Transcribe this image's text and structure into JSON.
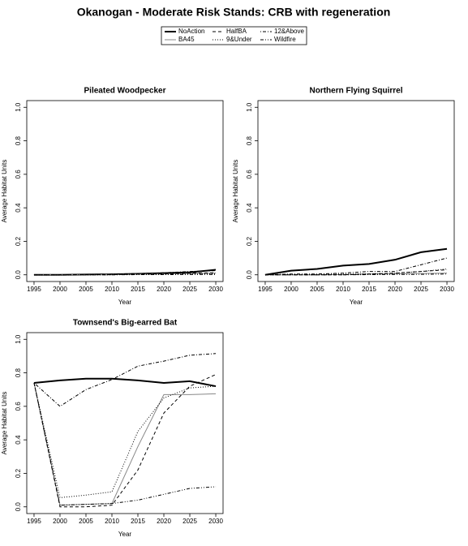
{
  "title": "Okanogan  - Moderate Risk Stands: CRB with regeneration",
  "chart_data": [
    {
      "type": "line",
      "title": "Pileated Woodpecker",
      "xlabel": "Year",
      "ylabel": "Average Habitat Units",
      "x": [
        1995,
        2000,
        2005,
        2010,
        2015,
        2020,
        2025,
        2030
      ],
      "xlim": [
        1993.6,
        2031.4
      ],
      "xticks": [
        1995,
        2000,
        2005,
        2010,
        2015,
        2020,
        2025,
        2030
      ],
      "ylim": [
        -0.04,
        1.04
      ],
      "yticks": [
        {
          "value": 0,
          "label": "0.0"
        },
        0.2,
        0.4,
        0.6,
        0.8,
        {
          "value": 1,
          "label": "1.0"
        }
      ],
      "series": [
        {
          "name": "NoAction",
          "color": "#000000",
          "style": "solid",
          "width": 2,
          "values": [
            0,
            0,
            0.002,
            0.003,
            0.006,
            0.01,
            0.015,
            0.03
          ]
        },
        {
          "name": "BA45",
          "color": "#888888",
          "style": "solid",
          "width": 1,
          "values": [
            0,
            0,
            0.001,
            0.002,
            0.003,
            0.005,
            0.008,
            0.01
          ]
        },
        {
          "name": "HalfBA",
          "color": "#000000",
          "style": "dashed",
          "width": 1,
          "values": [
            0,
            0,
            0.001,
            0.002,
            0.004,
            0.006,
            0.01,
            0.012
          ]
        },
        {
          "name": "9&Under",
          "color": "#000000",
          "style": "dotted",
          "width": 1,
          "values": [
            0,
            0,
            0,
            0.001,
            0.002,
            0.003,
            0.005,
            0.006
          ]
        },
        {
          "name": "12&Above",
          "color": "#000000",
          "style": "dotdash",
          "width": 1,
          "values": [
            0,
            0.001,
            0.002,
            0.004,
            0.008,
            0.012,
            0.02,
            0.025
          ]
        },
        {
          "name": "Wildfire",
          "color": "#000000",
          "style": "twodash",
          "width": 1,
          "values": [
            0,
            0,
            0,
            0,
            0.001,
            0.001,
            0.002,
            0.002
          ]
        }
      ]
    },
    {
      "type": "line",
      "title": "Northern Flying Squirrel",
      "xlabel": "Year",
      "ylabel": "Average Habitat Units",
      "x": [
        1995,
        2000,
        2005,
        2010,
        2015,
        2020,
        2025,
        2030
      ],
      "xlim": [
        1993.6,
        2031.4
      ],
      "xticks": [
        1995,
        2000,
        2005,
        2010,
        2015,
        2020,
        2025,
        2030
      ],
      "ylim": [
        -0.04,
        1.04
      ],
      "yticks": [
        {
          "value": 0,
          "label": "0.0"
        },
        0.2,
        0.4,
        0.6,
        0.8,
        {
          "value": 1,
          "label": "1.0"
        }
      ],
      "series": [
        {
          "name": "NoAction",
          "color": "#000000",
          "style": "solid",
          "width": 2,
          "values": [
            0,
            0.025,
            0.035,
            0.055,
            0.065,
            0.09,
            0.135,
            0.155
          ]
        },
        {
          "name": "BA45",
          "color": "#888888",
          "style": "solid",
          "width": 1,
          "values": [
            0,
            0,
            0,
            0.002,
            0.004,
            0.006,
            0.008,
            0.01
          ]
        },
        {
          "name": "HalfBA",
          "color": "#000000",
          "style": "dashed",
          "width": 1,
          "values": [
            0,
            0,
            0,
            0,
            0.005,
            0.01,
            0.02,
            0.03
          ]
        },
        {
          "name": "9&Under",
          "color": "#000000",
          "style": "dotted",
          "width": 1,
          "values": [
            0,
            0.003,
            0.003,
            0.004,
            0.006,
            0.01,
            0.02,
            0.035
          ]
        },
        {
          "name": "12&Above",
          "color": "#000000",
          "style": "dotdash",
          "width": 1,
          "values": [
            0,
            0.005,
            0.005,
            0.01,
            0.02,
            0.02,
            0.06,
            0.1
          ]
        },
        {
          "name": "Wildfire",
          "color": "#000000",
          "style": "twodash",
          "width": 1,
          "values": [
            0,
            0,
            0,
            0,
            0.001,
            0.002,
            0.003,
            0.005
          ]
        }
      ]
    },
    {
      "type": "line",
      "title": "Townsend's Big-earred Bat",
      "xlabel": "Year",
      "ylabel": "Average Habitat Units",
      "x": [
        1995,
        2000,
        2005,
        2010,
        2015,
        2020,
        2025,
        2030
      ],
      "xlim": [
        1993.6,
        2031.4
      ],
      "xticks": [
        1995,
        2000,
        2005,
        2010,
        2015,
        2020,
        2025,
        2030
      ],
      "ylim": [
        -0.04,
        1.04
      ],
      "yticks": [
        {
          "value": 0,
          "label": "0.0"
        },
        0.2,
        0.4,
        0.6,
        0.8,
        {
          "value": 1,
          "label": "1.0"
        }
      ],
      "series": [
        {
          "name": "NoAction",
          "color": "#000000",
          "style": "solid",
          "width": 2,
          "values": [
            0.74,
            0.755,
            0.765,
            0.765,
            0.755,
            0.74,
            0.75,
            0.72
          ]
        },
        {
          "name": "BA45",
          "color": "#888888",
          "style": "solid",
          "width": 1,
          "values": [
            0.74,
            0.01,
            0.015,
            0.02,
            0.36,
            0.67,
            0.67,
            0.675
          ]
        },
        {
          "name": "HalfBA",
          "color": "#000000",
          "style": "dashed",
          "width": 1,
          "values": [
            0.74,
            0,
            0,
            0.01,
            0.22,
            0.56,
            0.72,
            0.79
          ]
        },
        {
          "name": "9&Under",
          "color": "#000000",
          "style": "dotted",
          "width": 1,
          "values": [
            0.74,
            0.055,
            0.07,
            0.09,
            0.45,
            0.65,
            0.71,
            0.72
          ]
        },
        {
          "name": "12&Above",
          "color": "#000000",
          "style": "dotdash",
          "width": 1,
          "values": [
            0.74,
            0.6,
            0.7,
            0.76,
            0.84,
            0.87,
            0.905,
            0.915
          ]
        },
        {
          "name": "Wildfire",
          "color": "#000000",
          "style": "twodash",
          "width": 1,
          "values": [
            0.74,
            0.01,
            0.015,
            0.02,
            0.04,
            0.075,
            0.11,
            0.12
          ]
        }
      ]
    }
  ]
}
